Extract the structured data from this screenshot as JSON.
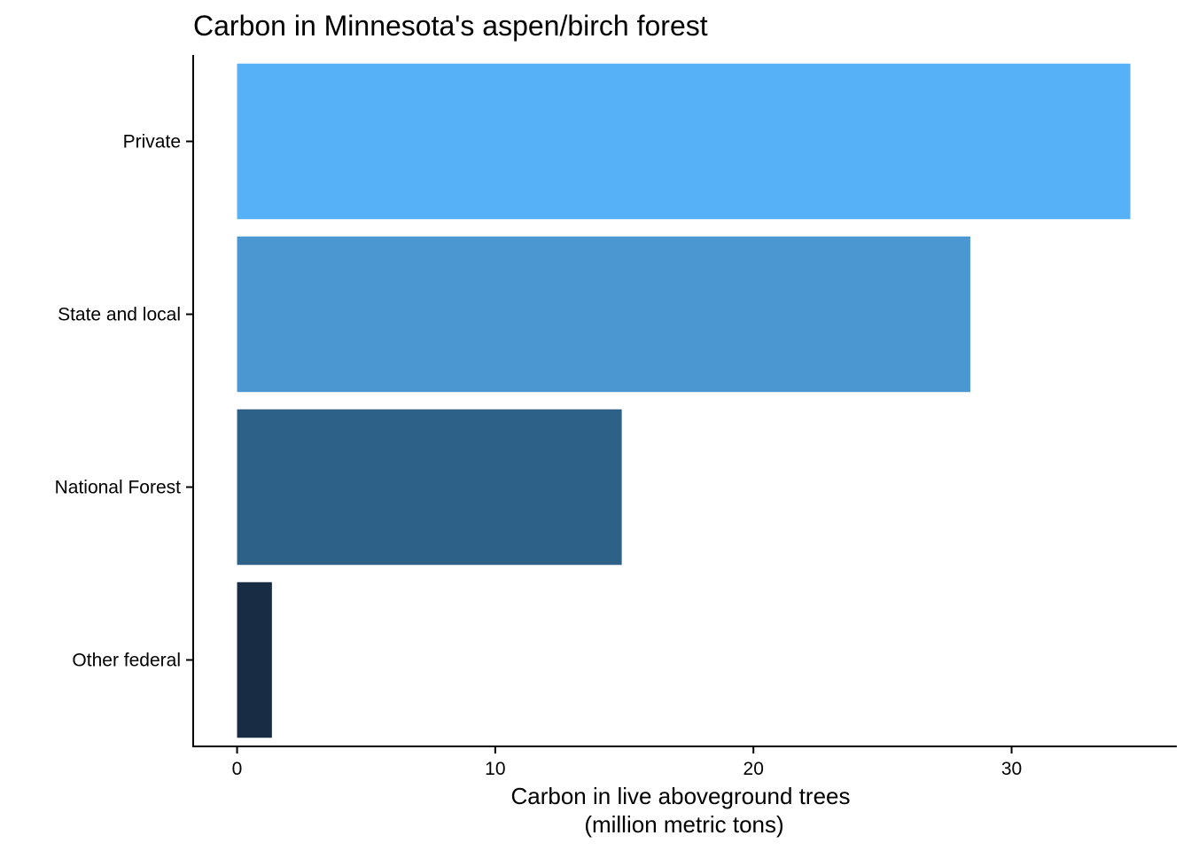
{
  "chart_data": {
    "type": "bar",
    "orientation": "horizontal",
    "title": "Carbon in Minnesota's aspen/birch forest",
    "xlabel_line1": "Carbon in live aboveground trees",
    "xlabel_line2": "(million metric tons)",
    "ylabel": "",
    "categories": [
      "Private",
      "State and local",
      "National Forest",
      "Other federal"
    ],
    "values": [
      34.6,
      28.4,
      14.9,
      1.35
    ],
    "colors": [
      "#56B1F7",
      "#4A97D1",
      "#2E6187",
      "#182D44"
    ],
    "xlim": [
      -1.7,
      36.4
    ],
    "xticks": [
      0,
      10,
      20,
      30
    ],
    "xtick_labels": [
      "0",
      "10",
      "20",
      "30"
    ],
    "grid": false,
    "legend": "none"
  }
}
